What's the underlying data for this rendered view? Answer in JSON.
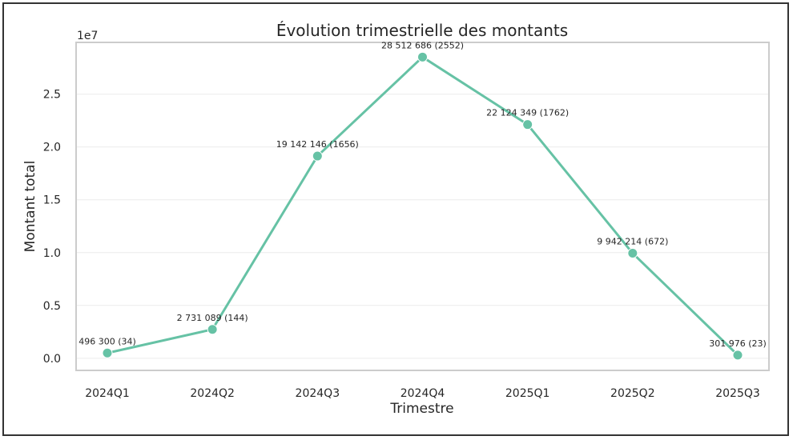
{
  "chart_data": {
    "type": "line",
    "title": "Évolution trimestrielle des montants",
    "xlabel": "Trimestre",
    "ylabel": "Montant total",
    "y_offset_label": "1e7",
    "categories": [
      "2024Q1",
      "2024Q2",
      "2024Q3",
      "2024Q4",
      "2025Q1",
      "2025Q2",
      "2025Q3"
    ],
    "series": [
      {
        "values": [
          496300,
          2731089,
          19142146,
          28512686,
          22124349,
          9942214,
          301976
        ],
        "labels": [
          "496 300 (34)",
          "2 731 089 (144)",
          "19 142 146 (1656)",
          "28 512 686 (2552)",
          "22 124 349 (1762)",
          "9 942 214 (672)",
          "301 976 (23)"
        ]
      }
    ],
    "yticks": [
      0.0,
      0.5,
      1.0,
      1.5,
      2.0,
      2.5
    ],
    "ytick_labels": [
      "0.0",
      "0.5",
      "1.0",
      "1.5",
      "2.0",
      "2.5"
    ],
    "ylim": [
      -1150000,
      29900000
    ],
    "grid": "horizontal",
    "line_color": "#66c2a5",
    "marker": "circle"
  }
}
